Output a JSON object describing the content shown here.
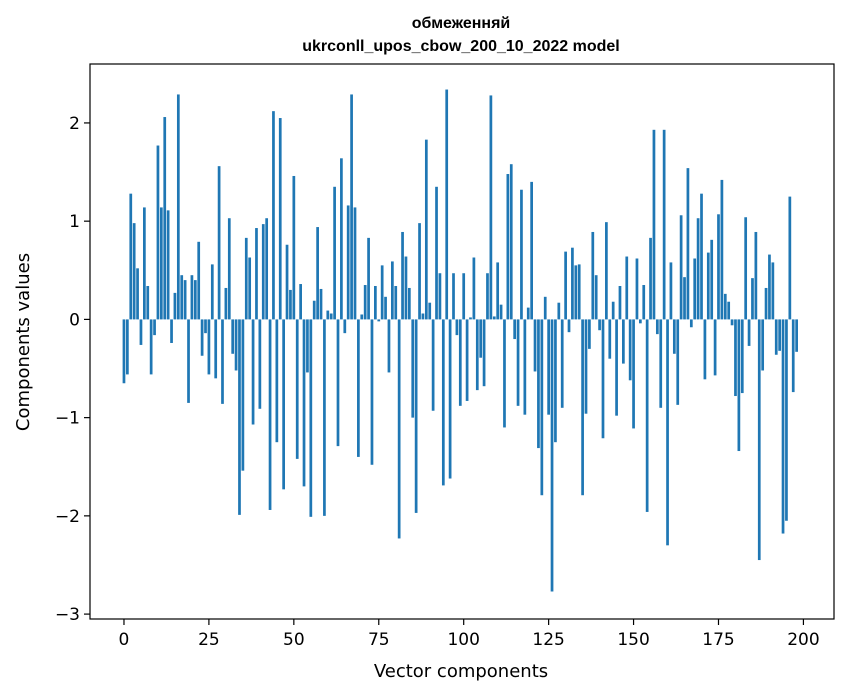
{
  "chart_data": {
    "type": "bar",
    "title_line1": "обмеженняй",
    "title_line2": "ukrconll_upos_cbow_200_10_2022 model",
    "xlabel": "Vector components",
    "ylabel": "Components values",
    "xlim": [
      -10,
      209
    ],
    "ylim": [
      -3.05,
      2.6
    ],
    "xticks": [
      0,
      25,
      50,
      75,
      100,
      125,
      150,
      175,
      200
    ],
    "xtick_labels": [
      "0",
      "25",
      "50",
      "75",
      "100",
      "125",
      "150",
      "175",
      "200"
    ],
    "yticks": [
      -3,
      -2,
      -1,
      0,
      1,
      2
    ],
    "ytick_labels": [
      "−3",
      "−2",
      "−1",
      "0",
      "1",
      "2"
    ],
    "bar_color": "#1f77b4",
    "grid": false,
    "values": [
      -0.65,
      -0.56,
      1.28,
      0.98,
      0.52,
      -0.26,
      1.14,
      0.34,
      -0.56,
      -0.16,
      1.77,
      1.14,
      2.06,
      1.11,
      -0.24,
      0.27,
      2.29,
      0.45,
      0.4,
      -0.85,
      0.45,
      0.4,
      0.79,
      -0.37,
      -0.14,
      -0.56,
      0.56,
      -0.6,
      1.56,
      -0.86,
      0.32,
      1.03,
      -0.35,
      -0.52,
      -1.99,
      -1.54,
      0.83,
      0.63,
      -1.07,
      0.93,
      -0.91,
      0.97,
      1.03,
      -1.94,
      2.12,
      -1.25,
      2.05,
      -1.73,
      0.76,
      0.3,
      1.46,
      -1.42,
      0.36,
      -1.7,
      -0.54,
      -2.01,
      0.19,
      0.94,
      0.31,
      -2.0,
      0.09,
      0.06,
      1.35,
      -1.29,
      1.64,
      -0.14,
      1.16,
      2.29,
      1.14,
      -1.4,
      0.05,
      0.35,
      0.83,
      -1.48,
      0.34,
      -0.02,
      0.55,
      0.23,
      -0.54,
      0.59,
      0.34,
      -2.23,
      0.89,
      0.64,
      0.32,
      -1.0,
      -1.97,
      0.98,
      0.06,
      1.83,
      0.17,
      -0.93,
      1.35,
      0.47,
      -1.69,
      2.34,
      -1.62,
      0.47,
      -0.16,
      -0.88,
      0.47,
      -0.83,
      0.02,
      0.63,
      -0.72,
      -0.39,
      -0.68,
      0.47,
      2.28,
      0.03,
      0.58,
      0.15,
      -1.1,
      1.48,
      1.58,
      -0.2,
      -0.88,
      1.32,
      -0.97,
      0.12,
      1.4,
      -0.53,
      -1.31,
      -1.79,
      0.23,
      -0.97,
      -2.77,
      -1.25,
      0.17,
      -0.9,
      0.69,
      -0.13,
      0.73,
      0.55,
      0.56,
      -1.79,
      -0.96,
      -0.3,
      0.89,
      0.45,
      -0.11,
      -1.21,
      0.99,
      -0.4,
      0.18,
      -0.98,
      0.34,
      -0.45,
      0.64,
      -0.62,
      -1.11,
      0.62,
      -0.04,
      0.35,
      -1.96,
      0.83,
      1.93,
      -0.15,
      -0.9,
      1.93,
      -2.3,
      0.58,
      -0.35,
      -0.87,
      1.06,
      0.43,
      1.54,
      -0.08,
      0.62,
      1.03,
      1.28,
      -0.61,
      0.68,
      0.81,
      -0.57,
      1.07,
      1.42,
      0.26,
      0.18,
      -0.06,
      -0.78,
      -1.34,
      -0.75,
      1.04,
      -0.27,
      0.42,
      0.89,
      -2.45,
      -0.52,
      0.32,
      0.66,
      0.58,
      -0.36,
      -0.32,
      -2.18,
      -2.05,
      1.25,
      -0.74,
      -0.33,
      0.0
    ]
  }
}
